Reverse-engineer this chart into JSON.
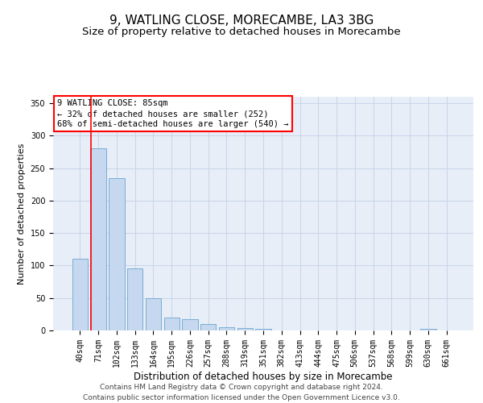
{
  "title": "9, WATLING CLOSE, MORECAMBE, LA3 3BG",
  "subtitle": "Size of property relative to detached houses in Morecambe",
  "xlabel": "Distribution of detached houses by size in Morecambe",
  "ylabel": "Number of detached properties",
  "footer_line1": "Contains HM Land Registry data © Crown copyright and database right 2024.",
  "footer_line2": "Contains public sector information licensed under the Open Government Licence v3.0.",
  "bar_labels": [
    "40sqm",
    "71sqm",
    "102sqm",
    "133sqm",
    "164sqm",
    "195sqm",
    "226sqm",
    "257sqm",
    "288sqm",
    "319sqm",
    "351sqm",
    "382sqm",
    "413sqm",
    "444sqm",
    "475sqm",
    "506sqm",
    "537sqm",
    "568sqm",
    "599sqm",
    "630sqm",
    "661sqm"
  ],
  "bar_values": [
    110,
    280,
    235,
    95,
    50,
    20,
    17,
    10,
    5,
    4,
    3,
    0,
    0,
    0,
    0,
    0,
    0,
    0,
    0,
    3,
    0
  ],
  "bar_color": "#c5d8f0",
  "bar_edge_color": "#7aadd4",
  "grid_color": "#c8d4e8",
  "background_color": "#e8eef8",
  "annotation_text": "9 WATLING CLOSE: 85sqm\n← 32% of detached houses are smaller (252)\n68% of semi-detached houses are larger (540) →",
  "annotation_box_color": "white",
  "annotation_border_color": "red",
  "redline_x": 0.58,
  "ylim": [
    0,
    360
  ],
  "yticks": [
    0,
    50,
    100,
    150,
    200,
    250,
    300,
    350
  ],
  "title_fontsize": 11,
  "subtitle_fontsize": 9.5,
  "xlabel_fontsize": 8.5,
  "ylabel_fontsize": 8,
  "tick_fontsize": 7,
  "annotation_fontsize": 7.5,
  "footer_fontsize": 6.5
}
